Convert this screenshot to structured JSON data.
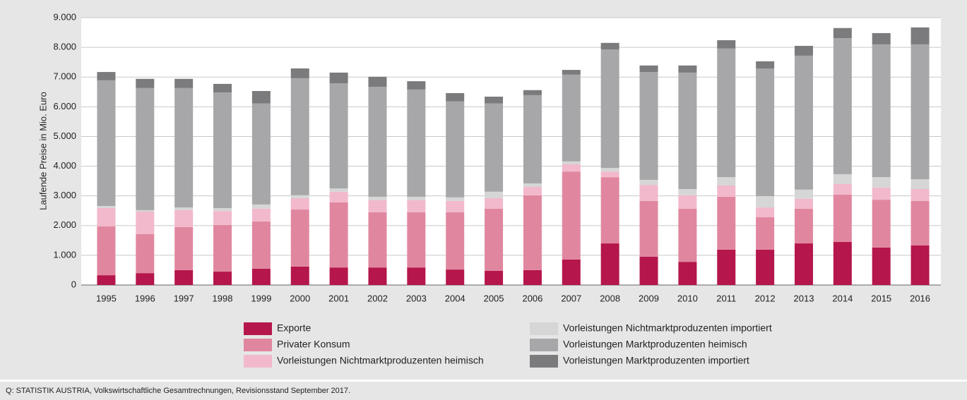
{
  "chart_data": {
    "type": "stacked_bar",
    "y_label": "Laufende Preise in Mio. Euro",
    "source": "Q: STATISTIK AUSTRIA, Volkswirtschaftliche Gesamtrechnungen, Revisionsstand September 2017.",
    "categories": [
      "1995",
      "1996",
      "1997",
      "1998",
      "1999",
      "2000",
      "2001",
      "2002",
      "2003",
      "2004",
      "2005",
      "2006",
      "2007",
      "2008",
      "2009",
      "2010",
      "2011",
      "2012",
      "2013",
      "2014",
      "2015",
      "2016"
    ],
    "series": [
      {
        "name": "Exporte",
        "color": "#b5164b",
        "values": [
          330,
          400,
          500,
          450,
          550,
          620,
          590,
          590,
          590,
          520,
          480,
          500,
          860,
          1400,
          950,
          780,
          1190,
          1190,
          1400,
          1450,
          1260,
          1330
        ]
      },
      {
        "name": "Privater Konsum",
        "color": "#e0879f",
        "values": [
          1640,
          1310,
          1450,
          1570,
          1590,
          1920,
          2190,
          1860,
          1860,
          1930,
          2090,
          2520,
          2960,
          2230,
          1880,
          1790,
          1780,
          1090,
          1170,
          1590,
          1610,
          1500
        ]
      },
      {
        "name": "Vorleistungen Nichtmarktproduzenten heimisch",
        "color": "#f2b8cc",
        "values": [
          620,
          760,
          570,
          470,
          430,
          380,
          360,
          400,
          400,
          380,
          350,
          280,
          240,
          190,
          540,
          450,
          380,
          330,
          330,
          360,
          410,
          400
        ]
      },
      {
        "name": "Vorleistungen Nichtmarktproduzenten importiert",
        "color": "#d6d6d6",
        "values": [
          70,
          50,
          90,
          100,
          140,
          100,
          110,
          120,
          120,
          120,
          220,
          120,
          100,
          120,
          170,
          210,
          280,
          380,
          310,
          330,
          350,
          330
        ]
      },
      {
        "name": "Vorleistungen Marktproduzenten heimisch",
        "color": "#a7a7a9",
        "values": [
          4230,
          4110,
          4020,
          3890,
          3400,
          3940,
          3540,
          3700,
          3610,
          3230,
          2970,
          2970,
          2920,
          3990,
          3630,
          3920,
          4330,
          4300,
          4510,
          4580,
          4470,
          4540
        ]
      },
      {
        "name": "Vorleistungen Marktproduzenten importiert",
        "color": "#7b7b7d",
        "values": [
          280,
          310,
          310,
          290,
          420,
          330,
          360,
          340,
          280,
          280,
          230,
          170,
          160,
          220,
          220,
          240,
          280,
          240,
          330,
          340,
          380,
          570
        ]
      }
    ],
    "ylim": [
      0,
      9000
    ],
    "yticks": [
      0,
      {
        "value": 1000,
        "label": "1.000"
      },
      {
        "value": 2000,
        "label": "2.000"
      },
      {
        "value": 3000,
        "label": "3.000"
      },
      {
        "value": 4000,
        "label": "4.000"
      },
      {
        "value": 5000,
        "label": "5.000"
      },
      {
        "value": 6000,
        "label": "6.000"
      },
      {
        "value": 7000,
        "label": "7.000"
      },
      {
        "value": 8000,
        "label": "8.000"
      },
      {
        "value": 9000,
        "label": "9.000"
      }
    ],
    "grid": true
  }
}
